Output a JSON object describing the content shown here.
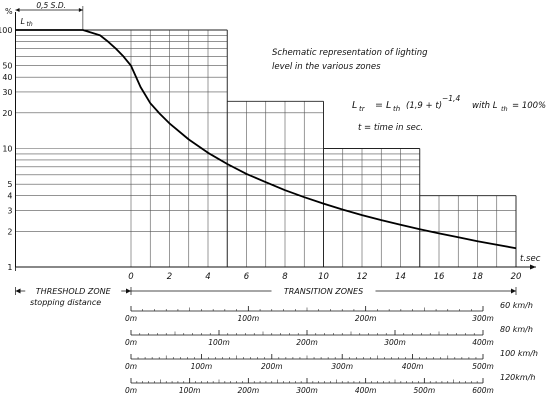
{
  "chart_data": {
    "type": "line",
    "title": "Schematic representation of lighting level in the various zones",
    "title_lines": [
      "Schematic representation of lighting",
      "level in the various zones"
    ],
    "formula": {
      "lhs": "L",
      "lhs_sub": "tr",
      "eq": "=",
      "rhs_L": "L",
      "rhs_sub": "th",
      "expr": "(1,9 + t)",
      "exp": "−1,4",
      "with": "with L",
      "with_sub": "th",
      "with_val": "= 100%"
    },
    "t_definition": "t = time in sec.",
    "ylabel": "%",
    "ymax_label": {
      "L": "L",
      "sub": "th"
    },
    "xlabel": "t.sec",
    "y_scale": "log",
    "ylim": [
      1,
      100
    ],
    "xlim": [
      -6,
      20
    ],
    "y_ticks": [
      1,
      2,
      3,
      4,
      5,
      10,
      20,
      30,
      40,
      50,
      100
    ],
    "y_tick_labels": [
      "1",
      "2",
      "3",
      "4",
      "5",
      "10",
      "20",
      "30",
      "40",
      "50",
      "100"
    ],
    "x_ticks": [
      0,
      2,
      4,
      6,
      8,
      10,
      12,
      14,
      16,
      18,
      20
    ],
    "x_tick_labels": [
      "0",
      "2",
      "4",
      "6",
      "8",
      "10",
      "12",
      "14",
      "16",
      "18",
      "20"
    ],
    "threshold_label": "0,5 S.D.",
    "threshold_value": 100,
    "zone_steps": [
      {
        "x_start": -6,
        "x_end": 5,
        "level": 100
      },
      {
        "x_start": 5,
        "x_end": 10,
        "level": 25
      },
      {
        "x_start": 10,
        "x_end": 15,
        "level": 10
      },
      {
        "x_start": 15,
        "x_end": 20,
        "level": 4
      }
    ],
    "series": [
      {
        "x": [
          -6,
          -2.5,
          -1.6,
          -1.2,
          -0.8,
          -0.4,
          0,
          0.5,
          1,
          1.5,
          2,
          3,
          4,
          5,
          6,
          7,
          8,
          9,
          10,
          11,
          12,
          13,
          14,
          15,
          16,
          17,
          18,
          19,
          20
        ],
        "y": [
          100,
          100,
          90,
          80,
          70,
          60,
          50,
          33,
          24.1,
          19.6,
          16.3,
          11.9,
          9.2,
          7.4,
          6.1,
          5.2,
          4.45,
          3.88,
          3.43,
          3.05,
          2.74,
          2.49,
          2.27,
          2.08,
          1.92,
          1.78,
          1.65,
          1.54,
          1.44
        ]
      }
    ],
    "zones": {
      "threshold": "THRESHOLD ZONE",
      "transition": "TRANSITION ZONES",
      "stopping": "stopping distance"
    },
    "speed_scales": [
      {
        "speed": "60 km/h",
        "labels": [
          "0m",
          "100m",
          "200m",
          "300m"
        ]
      },
      {
        "speed": "80 km/h",
        "labels": [
          "0m",
          "100m",
          "200m",
          "300m",
          "400m"
        ]
      },
      {
        "speed": "100 km/h",
        "labels": [
          "0m",
          "100m",
          "200m",
          "300m",
          "400m",
          "500m"
        ]
      },
      {
        "speed": "120km/h",
        "labels": [
          "0m",
          "100m",
          "200m",
          "300m",
          "400m",
          "500m",
          "600m"
        ]
      }
    ]
  }
}
